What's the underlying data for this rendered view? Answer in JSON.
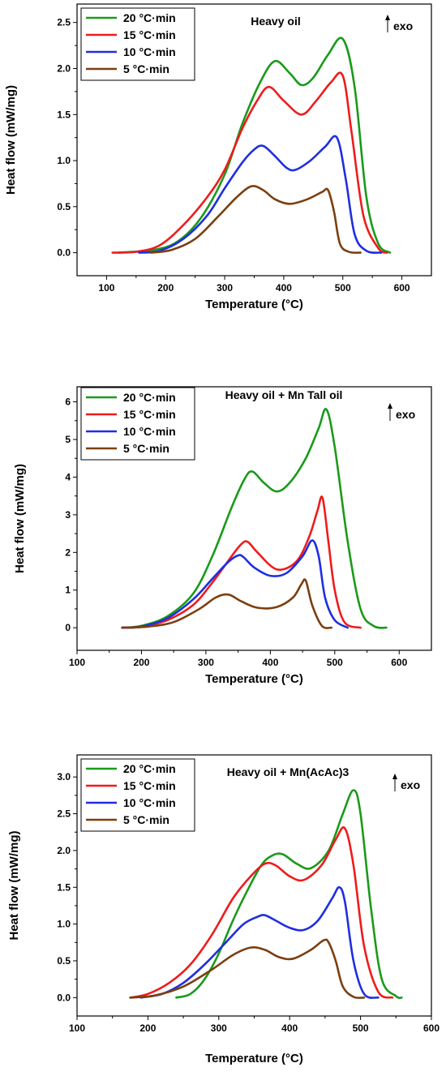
{
  "chart_data": [
    {
      "type": "line",
      "title": "Heavy oil",
      "xlabel": "Temperature (°C)",
      "ylabel": "Heat flow (mW/mg)",
      "xlim": [
        50,
        650
      ],
      "ylim": [
        -0.25,
        2.7
      ],
      "xticks": [
        100,
        200,
        300,
        400,
        500,
        600
      ],
      "yticks": [
        0.0,
        0.5,
        1.0,
        1.5,
        2.0,
        2.5
      ],
      "ytick_labels": [
        "0.0",
        "0.5",
        "1.0",
        "1.5",
        "2.0",
        "2.5"
      ],
      "annotation": "exo",
      "legend_position": "top-left",
      "series": [
        {
          "name": "20 °C·min",
          "color": "#1a9a1a",
          "x": [
            120,
            180,
            220,
            260,
            300,
            330,
            360,
            385,
            410,
            430,
            450,
            475,
            500,
            520,
            540,
            560,
            580
          ],
          "y": [
            0,
            0.03,
            0.12,
            0.38,
            0.85,
            1.4,
            1.85,
            2.08,
            1.95,
            1.82,
            1.9,
            2.15,
            2.32,
            1.8,
            0.6,
            0.1,
            0
          ]
        },
        {
          "name": "15 °C·min",
          "color": "#ee1c1c",
          "x": [
            110,
            150,
            190,
            230,
            270,
            300,
            330,
            355,
            375,
            400,
            430,
            455,
            480,
            500,
            515,
            535,
            560,
            575
          ],
          "y": [
            0,
            0.01,
            0.08,
            0.3,
            0.6,
            0.9,
            1.35,
            1.65,
            1.8,
            1.65,
            1.5,
            1.65,
            1.85,
            1.92,
            1.3,
            0.4,
            0.05,
            0
          ]
        },
        {
          "name": "10 °C·min",
          "color": "#1f2ee0",
          "x": [
            155,
            190,
            230,
            270,
            300,
            330,
            350,
            365,
            385,
            405,
            420,
            445,
            470,
            490,
            505,
            520,
            540,
            565
          ],
          "y": [
            0,
            0.02,
            0.15,
            0.4,
            0.7,
            0.98,
            1.12,
            1.16,
            1.05,
            0.92,
            0.9,
            1.0,
            1.15,
            1.25,
            0.8,
            0.2,
            0.02,
            0
          ]
        },
        {
          "name": "5 °C·min",
          "color": "#7b3f10",
          "x": [
            175,
            210,
            250,
            290,
            320,
            345,
            365,
            385,
            410,
            440,
            465,
            475,
            485,
            495,
            510,
            530
          ],
          "y": [
            0,
            0.03,
            0.15,
            0.4,
            0.6,
            0.72,
            0.68,
            0.58,
            0.53,
            0.58,
            0.66,
            0.68,
            0.45,
            0.1,
            0.01,
            0
          ]
        }
      ]
    },
    {
      "type": "line",
      "title": "Heavy oil + Mn Tall oil",
      "xlabel": "Temperature (°C)",
      "ylabel": "Heat flow (mW/mg)",
      "xlim": [
        100,
        650
      ],
      "ylim": [
        -0.6,
        6.4
      ],
      "xticks": [
        100,
        200,
        300,
        400,
        500,
        600
      ],
      "yticks": [
        0,
        1,
        2,
        3,
        4,
        5,
        6
      ],
      "ytick_labels": [
        "0",
        "1",
        "2",
        "3",
        "4",
        "5",
        "6"
      ],
      "annotation": "exo",
      "legend_position": "top-left",
      "series": [
        {
          "name": "20 °C·min",
          "color": "#1a9a1a",
          "x": [
            170,
            200,
            240,
            280,
            310,
            340,
            360,
            372,
            390,
            410,
            430,
            455,
            475,
            487,
            500,
            520,
            540,
            560,
            580
          ],
          "y": [
            0,
            0.05,
            0.3,
            0.9,
            1.9,
            3.2,
            3.95,
            4.15,
            3.85,
            3.62,
            3.85,
            4.5,
            5.3,
            5.8,
            4.8,
            2.3,
            0.5,
            0.05,
            0
          ]
        },
        {
          "name": "15 °C·min",
          "color": "#ee1c1c",
          "x": [
            170,
            200,
            240,
            280,
            310,
            340,
            355,
            365,
            380,
            410,
            440,
            460,
            473,
            481,
            490,
            500,
            515,
            540
          ],
          "y": [
            0,
            0.03,
            0.2,
            0.6,
            1.2,
            1.9,
            2.22,
            2.28,
            2.0,
            1.55,
            1.75,
            2.4,
            3.1,
            3.45,
            2.3,
            1.0,
            0.15,
            0
          ]
        },
        {
          "name": "10 °C·min",
          "color": "#1f2ee0",
          "x": [
            170,
            200,
            240,
            280,
            310,
            335,
            350,
            358,
            375,
            400,
            425,
            450,
            465,
            475,
            485,
            500,
            520
          ],
          "y": [
            0,
            0.03,
            0.25,
            0.75,
            1.3,
            1.75,
            1.92,
            1.88,
            1.6,
            1.38,
            1.45,
            1.9,
            2.32,
            1.9,
            0.8,
            0.2,
            0
          ]
        },
        {
          "name": "5 °C·min",
          "color": "#7b3f10",
          "x": [
            170,
            210,
            250,
            290,
            315,
            335,
            355,
            380,
            410,
            435,
            448,
            455,
            465,
            480,
            495
          ],
          "y": [
            0,
            0.03,
            0.15,
            0.5,
            0.8,
            0.88,
            0.7,
            0.53,
            0.55,
            0.8,
            1.15,
            1.25,
            0.6,
            0.05,
            0
          ]
        }
      ]
    },
    {
      "type": "line",
      "title": "Heavy oil + Mn(AcAc)3",
      "xlabel": "Temperature (°C)",
      "ylabel": "Heat flow (mW/mg)",
      "xlim": [
        100,
        600
      ],
      "ylim": [
        -0.25,
        3.3
      ],
      "xticks": [
        100,
        200,
        300,
        400,
        500,
        600
      ],
      "yticks": [
        0.0,
        0.5,
        1.0,
        1.5,
        2.0,
        2.5,
        3.0
      ],
      "ytick_labels": [
        "0.0",
        "0.5",
        "1.0",
        "1.5",
        "2.0",
        "2.5",
        "3.0"
      ],
      "annotation": "exo",
      "legend_position": "top-left",
      "series": [
        {
          "name": "20 °C·min",
          "color": "#1a9a1a",
          "x": [
            240,
            260,
            280,
            300,
            320,
            340,
            360,
            375,
            390,
            410,
            430,
            455,
            475,
            490,
            500,
            515,
            530,
            550,
            558
          ],
          "y": [
            0,
            0.05,
            0.25,
            0.6,
            1.05,
            1.45,
            1.8,
            1.93,
            1.95,
            1.82,
            1.76,
            2.0,
            2.5,
            2.82,
            2.5,
            1.2,
            0.25,
            0.02,
            0
          ]
        },
        {
          "name": "15 °C·min",
          "color": "#ee1c1c",
          "x": [
            175,
            200,
            230,
            260,
            290,
            320,
            345,
            365,
            380,
            400,
            420,
            445,
            465,
            478,
            490,
            505,
            525,
            545
          ],
          "y": [
            0,
            0.05,
            0.2,
            0.45,
            0.85,
            1.35,
            1.65,
            1.82,
            1.8,
            1.65,
            1.6,
            1.8,
            2.15,
            2.3,
            1.8,
            0.7,
            0.08,
            0
          ]
        },
        {
          "name": "10 °C·min",
          "color": "#1f2ee0",
          "x": [
            190,
            220,
            250,
            280,
            310,
            335,
            355,
            365,
            380,
            400,
            420,
            440,
            460,
            470,
            478,
            490,
            505,
            525
          ],
          "y": [
            0,
            0.05,
            0.2,
            0.45,
            0.75,
            1.0,
            1.1,
            1.12,
            1.05,
            0.95,
            0.92,
            1.05,
            1.35,
            1.5,
            1.3,
            0.5,
            0.05,
            0
          ]
        },
        {
          "name": "5 °C·min",
          "color": "#7b3f10",
          "x": [
            175,
            210,
            250,
            290,
            320,
            345,
            365,
            385,
            405,
            430,
            448,
            455,
            465,
            475,
            490,
            505
          ],
          "y": [
            0,
            0.03,
            0.15,
            0.38,
            0.58,
            0.68,
            0.65,
            0.55,
            0.53,
            0.65,
            0.78,
            0.75,
            0.5,
            0.15,
            0.01,
            0
          ]
        }
      ]
    }
  ]
}
